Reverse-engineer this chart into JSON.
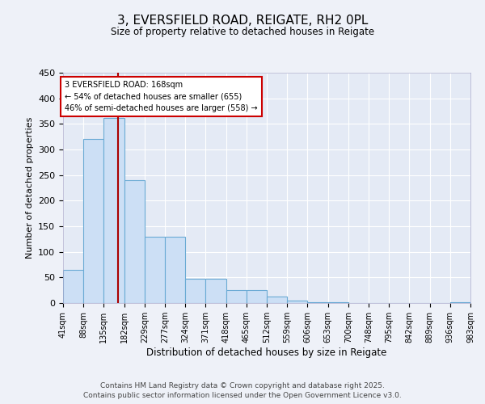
{
  "title": "3, EVERSFIELD ROAD, REIGATE, RH2 0PL",
  "subtitle": "Size of property relative to detached houses in Reigate",
  "xlabel": "Distribution of detached houses by size in Reigate",
  "ylabel": "Number of detached properties",
  "bar_values": [
    65,
    320,
    362,
    240,
    130,
    130,
    48,
    48,
    25,
    25,
    12,
    5,
    2,
    2,
    0,
    0,
    0,
    0,
    0,
    2
  ],
  "bar_labels": [
    "41sqm",
    "88sqm",
    "135sqm",
    "182sqm",
    "229sqm",
    "277sqm",
    "324sqm",
    "371sqm",
    "418sqm",
    "465sqm",
    "512sqm",
    "559sqm",
    "606sqm",
    "653sqm",
    "700sqm",
    "748sqm",
    "795sqm",
    "842sqm",
    "889sqm",
    "936sqm",
    "983sqm"
  ],
  "bar_color": "#ccdff5",
  "bar_edge_color": "#6aaad4",
  "vline_color": "#aa0000",
  "annotation_text": "3 EVERSFIELD ROAD: 168sqm\n← 54% of detached houses are smaller (655)\n46% of semi-detached houses are larger (558) →",
  "annotation_box_color": "#ffffff",
  "annotation_box_edge": "#cc0000",
  "ylim": [
    0,
    450
  ],
  "yticks": [
    0,
    50,
    100,
    150,
    200,
    250,
    300,
    350,
    400,
    450
  ],
  "footer_line1": "Contains HM Land Registry data © Crown copyright and database right 2025.",
  "footer_line2": "Contains public sector information licensed under the Open Government Licence v3.0.",
  "bg_color": "#eef1f8",
  "plot_bg_color": "#e4eaf5",
  "grid_color": "#ffffff"
}
